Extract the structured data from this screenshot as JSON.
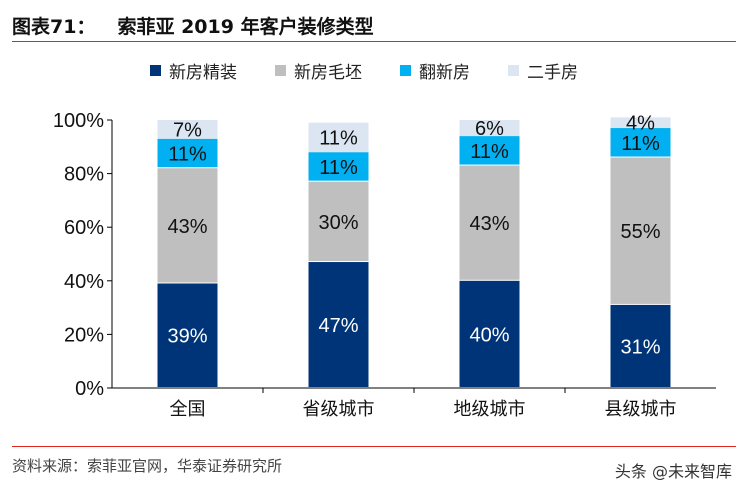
{
  "title": {
    "label": "图表71：",
    "text": "索菲亚 2019 年客户装修类型"
  },
  "source": "资料来源：索菲亚官网，华泰证券研究所",
  "watermark": "头条 @未来智库",
  "chart_data": {
    "type": "bar",
    "stacked": true,
    "categories": [
      "全国",
      "省级城市",
      "地级城市",
      "县级城市"
    ],
    "series": [
      {
        "name": "新房精装",
        "color": "#003478",
        "values": [
          39,
          47,
          40,
          31
        ]
      },
      {
        "name": "新房毛坯",
        "color": "#BFBFBF",
        "values": [
          43,
          30,
          43,
          55
        ]
      },
      {
        "name": "翻新房",
        "color": "#00B0F0",
        "values": [
          11,
          11,
          11,
          11
        ]
      },
      {
        "name": "二手房",
        "color": "#DCE6F2",
        "values": [
          7,
          11,
          6,
          4
        ]
      }
    ],
    "yticks": [
      "0%",
      "20%",
      "40%",
      "60%",
      "80%",
      "100%"
    ],
    "ylim": [
      0,
      100
    ],
    "legend": "top",
    "grid": false
  }
}
